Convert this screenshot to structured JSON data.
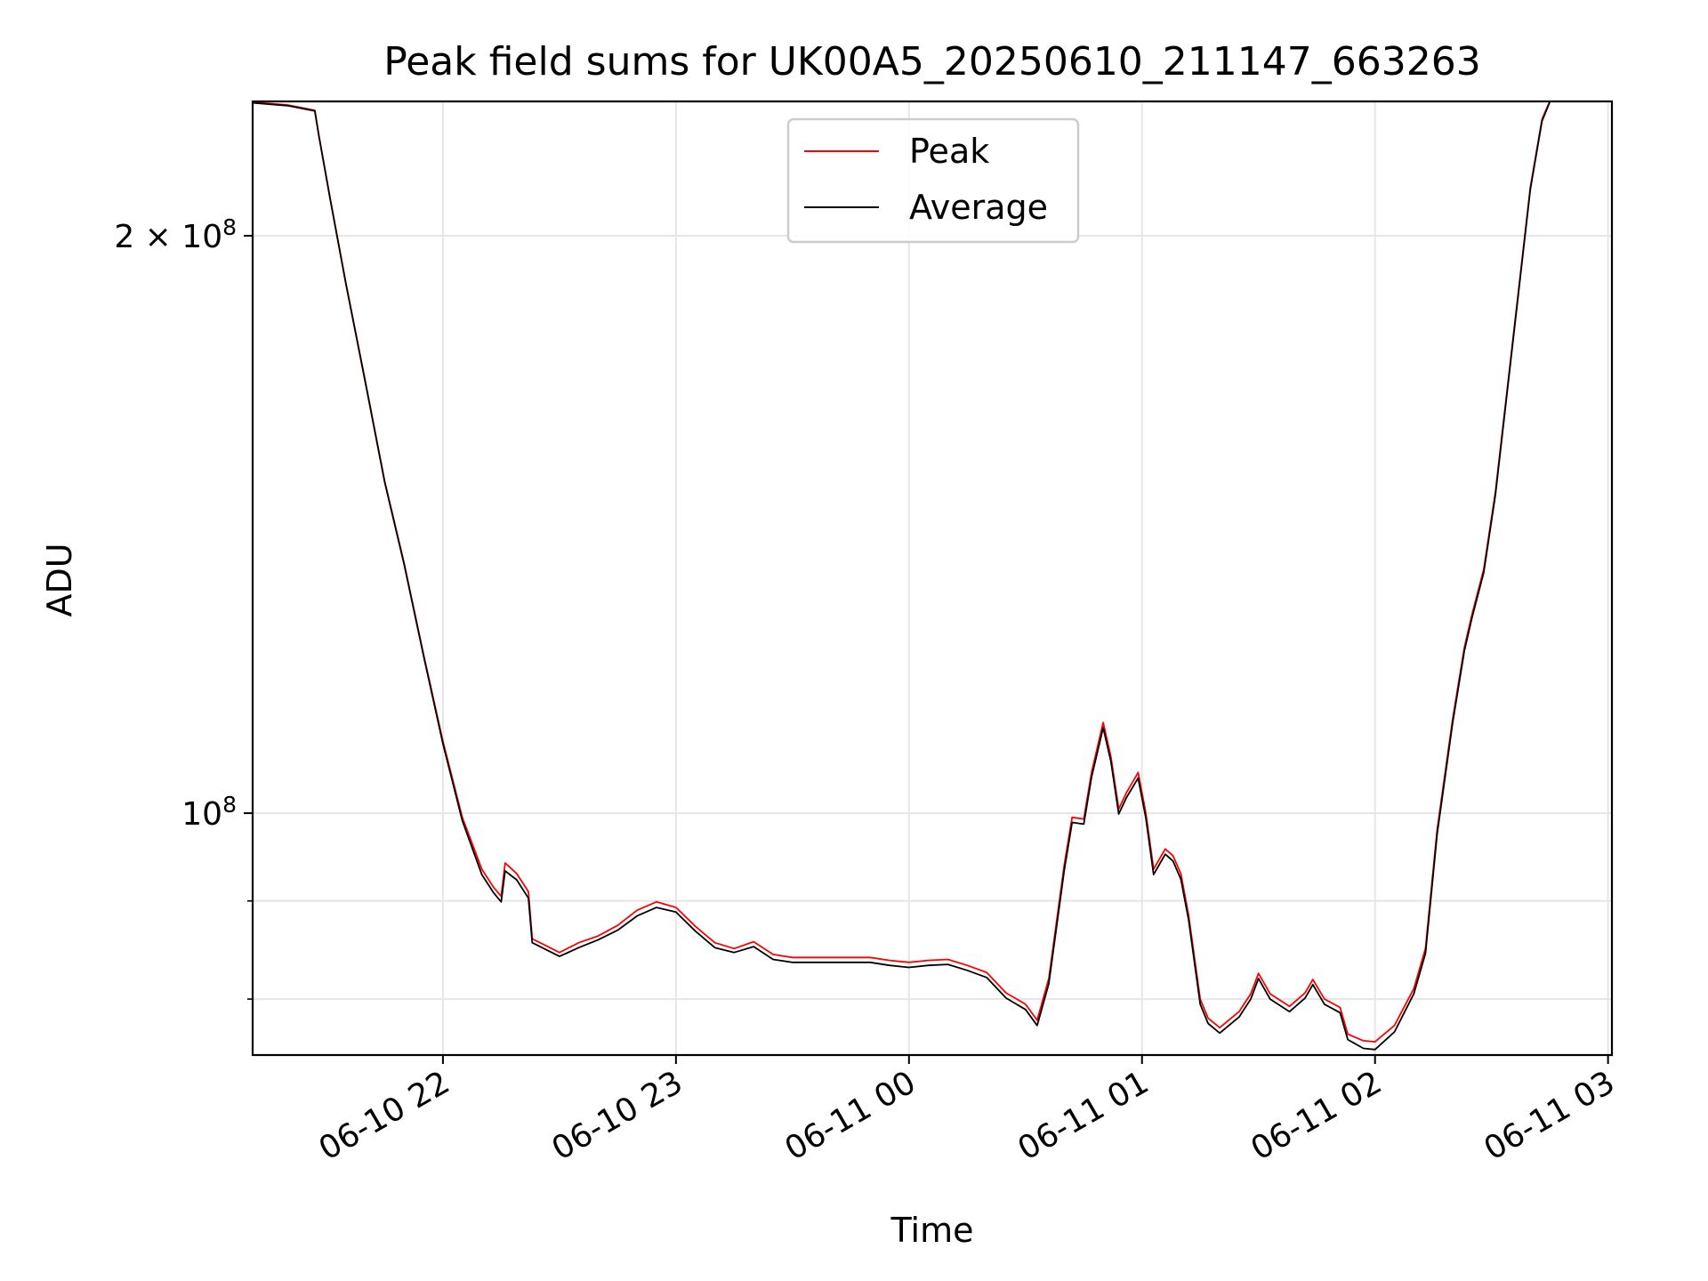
{
  "chart_data": {
    "type": "line",
    "title": "Peak field sums for UK00A5_20250610_211147_663263",
    "xlabel": "Time",
    "ylabel": "ADU",
    "y_scale": "log",
    "xlim": [
      "2025-06-10 21:11",
      "2025-06-11 03:01"
    ],
    "ylim": [
      74800000,
      235000000
    ],
    "grid": true,
    "legend_position": "upper center",
    "x_ticks": [
      {
        "t": "2025-06-10 22:00",
        "label": "06-10 22"
      },
      {
        "t": "2025-06-10 23:00",
        "label": "06-10 23"
      },
      {
        "t": "2025-06-11 00:00",
        "label": "06-11 00"
      },
      {
        "t": "2025-06-11 01:00",
        "label": "06-11 01"
      },
      {
        "t": "2025-06-11 02:00",
        "label": "06-11 02"
      },
      {
        "t": "2025-06-11 03:00",
        "label": "06-11 03"
      }
    ],
    "y_major_ticks": [
      {
        "value": 100000000,
        "base": "10",
        "exp": "8",
        "coef": ""
      },
      {
        "value": 200000000,
        "base": "10",
        "exp": "8",
        "coef": "2 × "
      }
    ],
    "y_minor_ticks": [
      80000000,
      90000000
    ],
    "series": [
      {
        "name": "Peak",
        "color": "#ff0000",
        "points": [
          [
            "2025-06-10 21:11",
            234800000
          ],
          [
            "2025-06-10 21:20",
            234000000
          ],
          [
            "2025-06-10 21:27",
            232500000
          ],
          [
            "2025-06-10 21:28",
            226000000
          ],
          [
            "2025-06-10 21:31",
            209000000
          ],
          [
            "2025-06-10 21:35",
            189000000
          ],
          [
            "2025-06-10 21:40",
            168000000
          ],
          [
            "2025-06-10 21:45",
            149000000
          ],
          [
            "2025-06-10 21:50",
            135000000
          ],
          [
            "2025-06-10 21:55",
            121000000
          ],
          [
            "2025-06-10 22:00",
            109000000
          ],
          [
            "2025-06-10 22:05",
            99500000
          ],
          [
            "2025-06-10 22:10",
            93500000
          ],
          [
            "2025-06-10 22:13",
            91500000
          ],
          [
            "2025-06-10 22:15",
            90500000
          ],
          [
            "2025-06-10 22:16",
            94200000
          ],
          [
            "2025-06-10 22:19",
            93000000
          ],
          [
            "2025-06-10 22:22",
            91000000
          ],
          [
            "2025-06-10 22:23",
            86000000
          ],
          [
            "2025-06-10 22:30",
            84600000
          ],
          [
            "2025-06-10 22:35",
            85600000
          ],
          [
            "2025-06-10 22:40",
            86300000
          ],
          [
            "2025-06-10 22:45",
            87400000
          ],
          [
            "2025-06-10 22:50",
            89000000
          ],
          [
            "2025-06-10 22:55",
            89900000
          ],
          [
            "2025-06-10 23:00",
            89300000
          ],
          [
            "2025-06-10 23:05",
            87300000
          ],
          [
            "2025-06-10 23:10",
            85600000
          ],
          [
            "2025-06-10 23:15",
            85000000
          ],
          [
            "2025-06-10 23:20",
            85700000
          ],
          [
            "2025-06-10 23:25",
            84400000
          ],
          [
            "2025-06-10 23:30",
            84100000
          ],
          [
            "2025-06-10 23:40",
            84100000
          ],
          [
            "2025-06-10 23:50",
            84100000
          ],
          [
            "2025-06-10 23:55",
            83800000
          ],
          [
            "2025-06-11 00:00",
            83600000
          ],
          [
            "2025-06-11 00:05",
            83800000
          ],
          [
            "2025-06-11 00:10",
            83900000
          ],
          [
            "2025-06-11 00:15",
            83300000
          ],
          [
            "2025-06-11 00:20",
            82600000
          ],
          [
            "2025-06-11 00:25",
            80600000
          ],
          [
            "2025-06-11 00:30",
            79500000
          ],
          [
            "2025-06-11 00:33",
            78000000
          ],
          [
            "2025-06-11 00:36",
            82000000
          ],
          [
            "2025-06-11 00:40",
            94000000
          ],
          [
            "2025-06-11 00:42",
            99500000
          ],
          [
            "2025-06-11 00:45",
            99300000
          ],
          [
            "2025-06-11 00:47",
            105000000
          ],
          [
            "2025-06-11 00:50",
            111500000
          ],
          [
            "2025-06-11 00:52",
            107000000
          ],
          [
            "2025-06-11 00:54",
            100500000
          ],
          [
            "2025-06-11 00:56",
            102500000
          ],
          [
            "2025-06-11 00:59",
            105000000
          ],
          [
            "2025-06-11 01:01",
            100000000
          ],
          [
            "2025-06-11 01:03",
            93500000
          ],
          [
            "2025-06-11 01:06",
            95800000
          ],
          [
            "2025-06-11 01:08",
            95000000
          ],
          [
            "2025-06-11 01:10",
            93000000
          ],
          [
            "2025-06-11 01:12",
            88500000
          ],
          [
            "2025-06-11 01:15",
            80000000
          ],
          [
            "2025-06-11 01:17",
            78200000
          ],
          [
            "2025-06-11 01:20",
            77300000
          ],
          [
            "2025-06-11 01:25",
            78800000
          ],
          [
            "2025-06-11 01:28",
            80500000
          ],
          [
            "2025-06-11 01:30",
            82500000
          ],
          [
            "2025-06-11 01:33",
            80500000
          ],
          [
            "2025-06-11 01:38",
            79300000
          ],
          [
            "2025-06-11 01:42",
            80600000
          ],
          [
            "2025-06-11 01:44",
            81900000
          ],
          [
            "2025-06-11 01:47",
            80000000
          ],
          [
            "2025-06-11 01:51",
            79200000
          ],
          [
            "2025-06-11 01:53",
            76700000
          ],
          [
            "2025-06-11 01:57",
            76100000
          ],
          [
            "2025-06-11 02:00",
            76000000
          ],
          [
            "2025-06-11 02:05",
            77500000
          ],
          [
            "2025-06-11 02:10",
            81000000
          ],
          [
            "2025-06-11 02:13",
            85000000
          ],
          [
            "2025-06-11 02:16",
            98000000
          ],
          [
            "2025-06-11 02:20",
            112000000
          ],
          [
            "2025-06-11 02:23",
            122000000
          ],
          [
            "2025-06-11 02:25",
            127000000
          ],
          [
            "2025-06-11 02:28",
            134000000
          ],
          [
            "2025-06-11 02:31",
            147000000
          ],
          [
            "2025-06-11 02:35",
            173000000
          ],
          [
            "2025-06-11 02:40",
            212000000
          ],
          [
            "2025-06-11 02:43",
            230000000
          ],
          [
            "2025-06-11 02:45",
            235000000
          ]
        ]
      },
      {
        "name": "Average",
        "color": "#000000",
        "points": [
          [
            "2025-06-10 21:11",
            234600000
          ],
          [
            "2025-06-10 21:20",
            233800000
          ],
          [
            "2025-06-10 21:27",
            232300000
          ],
          [
            "2025-06-10 21:28",
            225800000
          ],
          [
            "2025-06-10 21:31",
            208800000
          ],
          [
            "2025-06-10 21:35",
            188800000
          ],
          [
            "2025-06-10 21:40",
            167800000
          ],
          [
            "2025-06-10 21:45",
            148800000
          ],
          [
            "2025-06-10 21:50",
            134800000
          ],
          [
            "2025-06-10 21:55",
            120800000
          ],
          [
            "2025-06-10 22:00",
            108700000
          ],
          [
            "2025-06-10 22:05",
            99100000
          ],
          [
            "2025-06-10 22:10",
            92900000
          ],
          [
            "2025-06-10 22:13",
            90900000
          ],
          [
            "2025-06-10 22:15",
            89900000
          ],
          [
            "2025-06-10 22:16",
            93300000
          ],
          [
            "2025-06-10 22:19",
            92300000
          ],
          [
            "2025-06-10 22:22",
            90300000
          ],
          [
            "2025-06-10 22:23",
            85600000
          ],
          [
            "2025-06-10 22:30",
            84200000
          ],
          [
            "2025-06-10 22:35",
            85100000
          ],
          [
            "2025-06-10 22:40",
            85900000
          ],
          [
            "2025-06-10 22:45",
            86900000
          ],
          [
            "2025-06-10 22:50",
            88400000
          ],
          [
            "2025-06-10 22:55",
            89300000
          ],
          [
            "2025-06-10 23:00",
            88800000
          ],
          [
            "2025-06-10 23:05",
            86800000
          ],
          [
            "2025-06-10 23:10",
            85100000
          ],
          [
            "2025-06-10 23:15",
            84600000
          ],
          [
            "2025-06-10 23:20",
            85200000
          ],
          [
            "2025-06-10 23:25",
            83900000
          ],
          [
            "2025-06-10 23:30",
            83600000
          ],
          [
            "2025-06-10 23:40",
            83600000
          ],
          [
            "2025-06-10 23:50",
            83600000
          ],
          [
            "2025-06-10 23:55",
            83300000
          ],
          [
            "2025-06-11 00:00",
            83100000
          ],
          [
            "2025-06-11 00:05",
            83300000
          ],
          [
            "2025-06-11 00:10",
            83400000
          ],
          [
            "2025-06-11 00:15",
            82800000
          ],
          [
            "2025-06-11 00:20",
            82100000
          ],
          [
            "2025-06-11 00:25",
            80100000
          ],
          [
            "2025-06-11 00:30",
            79000000
          ],
          [
            "2025-06-11 00:33",
            77500000
          ],
          [
            "2025-06-11 00:36",
            81500000
          ],
          [
            "2025-06-11 00:40",
            93400000
          ],
          [
            "2025-06-11 00:42",
            98900000
          ],
          [
            "2025-06-11 00:45",
            98700000
          ],
          [
            "2025-06-11 00:47",
            104400000
          ],
          [
            "2025-06-11 00:50",
            110800000
          ],
          [
            "2025-06-11 00:52",
            106400000
          ],
          [
            "2025-06-11 00:54",
            99900000
          ],
          [
            "2025-06-11 00:56",
            101900000
          ],
          [
            "2025-06-11 00:59",
            104300000
          ],
          [
            "2025-06-11 01:01",
            99400000
          ],
          [
            "2025-06-11 01:03",
            92900000
          ],
          [
            "2025-06-11 01:06",
            95200000
          ],
          [
            "2025-06-11 01:08",
            94400000
          ],
          [
            "2025-06-11 01:10",
            92400000
          ],
          [
            "2025-06-11 01:12",
            88000000
          ],
          [
            "2025-06-11 01:15",
            79500000
          ],
          [
            "2025-06-11 01:17",
            77700000
          ],
          [
            "2025-06-11 01:20",
            76800000
          ],
          [
            "2025-06-11 01:25",
            78300000
          ],
          [
            "2025-06-11 01:28",
            80000000
          ],
          [
            "2025-06-11 01:30",
            82000000
          ],
          [
            "2025-06-11 01:33",
            80000000
          ],
          [
            "2025-06-11 01:38",
            78800000
          ],
          [
            "2025-06-11 01:42",
            80100000
          ],
          [
            "2025-06-11 01:44",
            81400000
          ],
          [
            "2025-06-11 01:47",
            79500000
          ],
          [
            "2025-06-11 01:51",
            78700000
          ],
          [
            "2025-06-11 01:53",
            76200000
          ],
          [
            "2025-06-11 01:57",
            75400000
          ],
          [
            "2025-06-11 02:00",
            75300000
          ],
          [
            "2025-06-11 02:05",
            76900000
          ],
          [
            "2025-06-11 02:10",
            80500000
          ],
          [
            "2025-06-11 02:13",
            84500000
          ],
          [
            "2025-06-11 02:16",
            97500000
          ],
          [
            "2025-06-11 02:20",
            111500000
          ],
          [
            "2025-06-11 02:23",
            121500000
          ],
          [
            "2025-06-11 02:25",
            126500000
          ],
          [
            "2025-06-11 02:28",
            133500000
          ],
          [
            "2025-06-11 02:31",
            146500000
          ],
          [
            "2025-06-11 02:35",
            172500000
          ],
          [
            "2025-06-11 02:40",
            211500000
          ],
          [
            "2025-06-11 02:43",
            229500000
          ],
          [
            "2025-06-11 02:45",
            234800000
          ]
        ]
      }
    ]
  }
}
